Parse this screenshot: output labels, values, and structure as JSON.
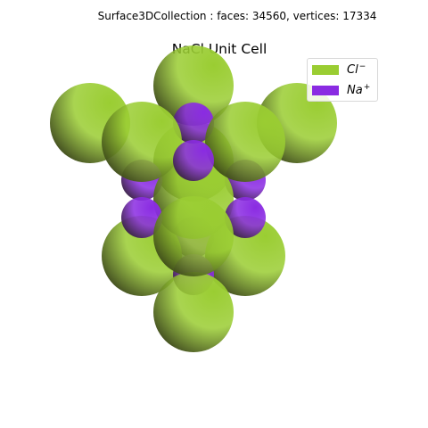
{
  "header": {
    "stats": "Surface3DCollection :  faces: 34560,  vertices: 17334"
  },
  "chart_data": {
    "type": "3d-surface",
    "title": "NaCl Unit Cell",
    "legend": {
      "placement": "top-right",
      "entries": [
        {
          "id": "cl",
          "base": "Cl",
          "charge": "−",
          "color": "#9acd32"
        },
        {
          "id": "na",
          "base": "Na",
          "charge": "+",
          "color": "#8a2be2"
        }
      ]
    },
    "atoms": [
      {
        "species": "Na",
        "x": 1,
        "y": 1,
        "z": 0
      },
      {
        "species": "Na",
        "x": 1,
        "y": 0,
        "z": 1
      },
      {
        "species": "Na",
        "x": 0,
        "y": 1,
        "z": 1
      },
      {
        "species": "Na",
        "x": 1,
        "y": 2,
        "z": 1
      },
      {
        "species": "Na",
        "x": 2,
        "y": 1,
        "z": 1
      },
      {
        "species": "Na",
        "x": 1,
        "y": 1,
        "z": 2
      },
      {
        "species": "Na",
        "x": 0,
        "y": 0,
        "z": 0
      },
      {
        "species": "Na",
        "x": 2,
        "y": 2,
        "z": 2
      },
      {
        "species": "Cl",
        "x": 0,
        "y": 0,
        "z": 2
      },
      {
        "species": "Cl",
        "x": 2,
        "y": 0,
        "z": 2
      },
      {
        "species": "Cl",
        "x": 0,
        "y": 2,
        "z": 2
      },
      {
        "species": "Cl",
        "x": 1,
        "y": 0,
        "z": 0
      },
      {
        "species": "Cl",
        "x": 0,
        "y": 1,
        "z": 0
      },
      {
        "species": "Cl",
        "x": 0,
        "y": 0,
        "z": 1
      },
      {
        "species": "Cl",
        "x": 2,
        "y": 2,
        "z": 0
      },
      {
        "species": "Cl",
        "x": 1,
        "y": 2,
        "z": 2
      },
      {
        "species": "Cl",
        "x": 2,
        "y": 1,
        "z": 2
      },
      {
        "species": "Cl",
        "x": 2,
        "y": 2,
        "z": 1
      },
      {
        "species": "Cl",
        "x": 1,
        "y": 1,
        "z": 1
      }
    ]
  }
}
